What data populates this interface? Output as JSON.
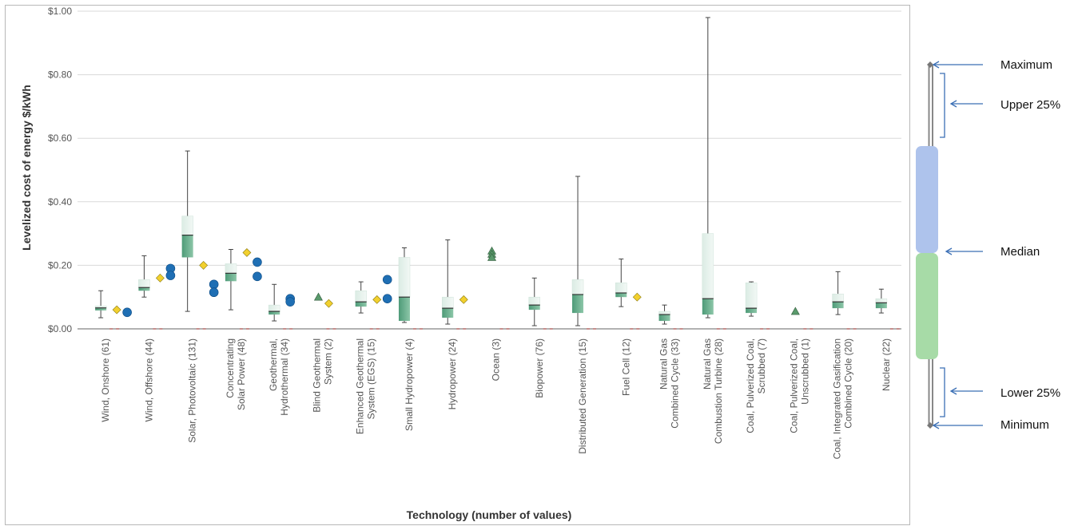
{
  "chart_data": {
    "type": "box",
    "ylabel": "Levelized cost of energy $/kWh",
    "xlabel": "Technology (number of values)",
    "ylim": [
      0,
      1.0
    ],
    "y_ticks": [
      "$0.00",
      "$0.20",
      "$0.40",
      "$0.60",
      "$0.80",
      "$1.00"
    ],
    "grid": "horizontal",
    "colors": {
      "lower_quartile": "#4e9b78",
      "upper_quartile": "#dbece4",
      "whisker": "#444444",
      "marker_diamond": "#f2d02e",
      "marker_circle": "#1f6fb4",
      "marker_triangle": "#5a9a6c",
      "legend_upper": "#aec3ec",
      "legend_lower": "#a7dba7",
      "legend_arrow": "#3b6fb5",
      "legend_whisker": "#888888"
    },
    "categories": [
      {
        "label": [
          "Wind, Onshore (61)"
        ],
        "min": 0.035,
        "q1": 0.058,
        "median": 0.066,
        "q3": 0.072,
        "max": 0.12,
        "markers": [
          {
            "shape": "diamond",
            "values": [
              0.06
            ]
          },
          {
            "shape": "circle",
            "values": [
              0.052
            ]
          }
        ]
      },
      {
        "label": [
          "Wind, Offshore (44)"
        ],
        "min": 0.1,
        "q1": 0.12,
        "median": 0.13,
        "q3": 0.155,
        "max": 0.23,
        "markers": [
          {
            "shape": "diamond",
            "values": [
              0.16
            ]
          },
          {
            "shape": "circle",
            "values": [
              0.19,
              0.168
            ]
          }
        ]
      },
      {
        "label": [
          "Solar, Photovoltaic (131)"
        ],
        "min": 0.055,
        "q1": 0.225,
        "median": 0.295,
        "q3": 0.355,
        "max": 0.56,
        "markers": [
          {
            "shape": "diamond",
            "values": [
              0.2
            ]
          },
          {
            "shape": "circle",
            "values": [
              0.14,
              0.115
            ]
          }
        ]
      },
      {
        "label": [
          "Concentrating",
          "Solar Power (48)"
        ],
        "min": 0.06,
        "q1": 0.15,
        "median": 0.175,
        "q3": 0.205,
        "max": 0.25,
        "markers": [
          {
            "shape": "diamond",
            "values": [
              0.24
            ]
          },
          {
            "shape": "circle",
            "values": [
              0.21,
              0.165
            ]
          }
        ]
      },
      {
        "label": [
          "Geothermal,",
          "Hydrothermal (34)"
        ],
        "min": 0.025,
        "q1": 0.045,
        "median": 0.055,
        "q3": 0.075,
        "max": 0.14,
        "markers": [
          {
            "shape": "circle",
            "values": [
              0.095,
              0.085
            ]
          }
        ]
      },
      {
        "label": [
          "Blind Geothermal",
          "System (2)"
        ],
        "min": null,
        "q1": null,
        "median": null,
        "q3": null,
        "max": null,
        "markers": [
          {
            "shape": "triangle",
            "values": [
              0.1
            ]
          },
          {
            "shape": "diamond",
            "values": [
              0.08
            ]
          }
        ]
      },
      {
        "label": [
          "Enhanced Geothermal",
          "System (EGS) (15)"
        ],
        "min": 0.05,
        "q1": 0.07,
        "median": 0.085,
        "q3": 0.12,
        "max": 0.148,
        "markers": [
          {
            "shape": "diamond",
            "values": [
              0.092
            ]
          },
          {
            "shape": "circle",
            "values": [
              0.155,
              0.095
            ]
          }
        ]
      },
      {
        "label": [
          "Small Hydropower (4)"
        ],
        "min": 0.02,
        "q1": 0.025,
        "median": 0.1,
        "q3": 0.225,
        "max": 0.255,
        "markers": []
      },
      {
        "label": [
          "Hydropower (24)"
        ],
        "min": 0.015,
        "q1": 0.035,
        "median": 0.065,
        "q3": 0.1,
        "max": 0.28,
        "markers": [
          {
            "shape": "diamond",
            "values": [
              0.092
            ]
          }
        ]
      },
      {
        "label": [
          "Ocean (3)"
        ],
        "min": null,
        "q1": null,
        "median": null,
        "q3": null,
        "max": null,
        "markers": [
          {
            "shape": "triangle",
            "values": [
              0.245,
              0.235,
              0.225
            ]
          }
        ]
      },
      {
        "label": [
          "Biopower (76)"
        ],
        "min": 0.01,
        "q1": 0.06,
        "median": 0.075,
        "q3": 0.1,
        "max": 0.16,
        "markers": []
      },
      {
        "label": [
          "Distributed Generation (15)"
        ],
        "min": 0.01,
        "q1": 0.05,
        "median": 0.108,
        "q3": 0.155,
        "max": 0.48,
        "markers": []
      },
      {
        "label": [
          "Fuel Cell (12)"
        ],
        "min": 0.07,
        "q1": 0.1,
        "median": 0.113,
        "q3": 0.145,
        "max": 0.22,
        "markers": [
          {
            "shape": "diamond",
            "values": [
              0.1
            ]
          }
        ]
      },
      {
        "label": [
          "Natural Gas",
          "Combined Cycle (33)"
        ],
        "min": 0.015,
        "q1": 0.025,
        "median": 0.045,
        "q3": 0.055,
        "max": 0.075,
        "markers": []
      },
      {
        "label": [
          "Natural Gas",
          "Combustion Turbine (28)"
        ],
        "min": 0.035,
        "q1": 0.045,
        "median": 0.095,
        "q3": 0.3,
        "max": 0.98,
        "markers": []
      },
      {
        "label": [
          "Coal, Pulverized Coal,",
          "Scrubbed (7)"
        ],
        "min": 0.04,
        "q1": 0.05,
        "median": 0.065,
        "q3": 0.145,
        "max": 0.148,
        "markers": []
      },
      {
        "label": [
          "Coal, Pulverized Coal,",
          "Unscrubbed (1)"
        ],
        "min": null,
        "q1": null,
        "median": null,
        "q3": null,
        "max": null,
        "markers": [
          {
            "shape": "triangle",
            "values": [
              0.055
            ]
          }
        ]
      },
      {
        "label": [
          "Coal, Integrated Gasification",
          "Combined Cycle (20)"
        ],
        "min": 0.045,
        "q1": 0.065,
        "median": 0.085,
        "q3": 0.11,
        "max": 0.18,
        "markers": []
      },
      {
        "label": [
          "Nuclear (22)"
        ],
        "min": 0.05,
        "q1": 0.065,
        "median": 0.082,
        "q3": 0.095,
        "max": 0.125,
        "markers": []
      }
    ]
  },
  "legend": {
    "maximum": "Maximum",
    "upper25": "Upper 25%",
    "median": "Median",
    "lower25": "Lower 25%",
    "minimum": "Minimum"
  }
}
